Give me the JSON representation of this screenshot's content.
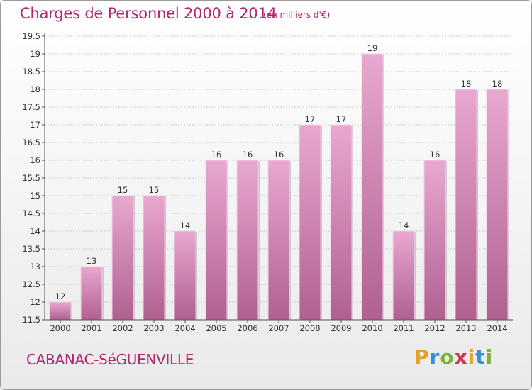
{
  "header": {
    "title": "Charges de Personnel 2000 à 2014",
    "unit": "(en milliers d'€)"
  },
  "footer": {
    "commune": "CABANAC-SéGUENVILLE",
    "logo": {
      "letters": [
        "P",
        "r",
        "o",
        "x",
        "i",
        "t",
        "i"
      ],
      "colors": [
        "#e8a020",
        "#3a8fd0",
        "#7ab33a",
        "#d8304a",
        "#e8a020",
        "#3a8fd0",
        "#7ab33a"
      ]
    }
  },
  "colors": {
    "accent": "#b3266e",
    "bar_top": "#e8a8d0",
    "bar_bottom": "#b0608f",
    "grid": "#cccccc"
  },
  "chart_data": {
    "type": "bar",
    "categories": [
      "2000",
      "2001",
      "2002",
      "2003",
      "2004",
      "2005",
      "2006",
      "2007",
      "2008",
      "2009",
      "2010",
      "2011",
      "2012",
      "2013",
      "2014"
    ],
    "values": [
      12,
      13,
      15,
      15,
      14,
      16,
      16,
      16,
      17,
      17,
      19,
      14,
      16,
      18,
      18
    ],
    "data_labels": [
      "12",
      "13",
      "15",
      "15",
      "14",
      "16",
      "16",
      "16",
      "17",
      "17",
      "19",
      "14",
      "16",
      "18",
      "18"
    ],
    "ylim": [
      11.5,
      19.5
    ],
    "yticks": [
      "11.5",
      "12",
      "12.5",
      "13",
      "13.5",
      "14",
      "14.5",
      "15",
      "15.5",
      "16",
      "16.5",
      "17",
      "17.5",
      "18",
      "18.5",
      "19",
      "19.5"
    ],
    "title": "Charges de Personnel 2000 à 2014",
    "xlabel": "",
    "ylabel": "",
    "grid": true
  }
}
